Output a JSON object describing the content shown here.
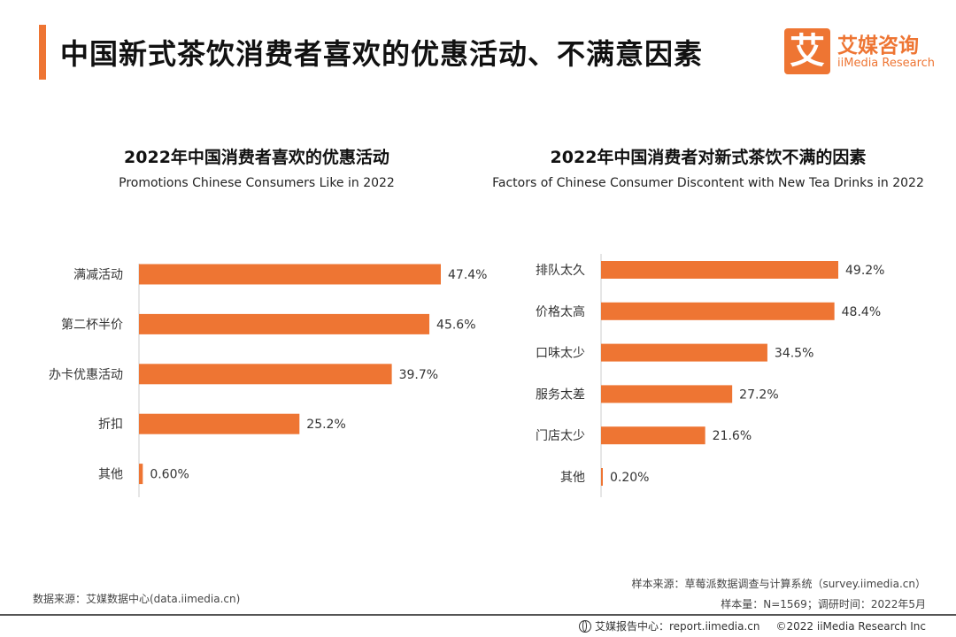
{
  "header": {
    "title": "中国新式茶饮消费者喜欢的优惠活动、不满意因素",
    "logo_mark": "艾",
    "logo_cn": "艾媒咨询",
    "logo_en": "iiMedia Research"
  },
  "colors": {
    "accent": "#ee7533",
    "axis": "#cccccc"
  },
  "chart_data": [
    {
      "type": "bar",
      "orientation": "horizontal",
      "title": "2022年中国消费者喜欢的优惠活动",
      "subtitle": "Promotions Chinese Consumers Like in 2022",
      "categories": [
        "满减活动",
        "第二杯半价",
        "办卡优惠活动",
        "折扣",
        "其他"
      ],
      "values": [
        47.4,
        45.6,
        39.7,
        25.2,
        0.6
      ],
      "value_labels": [
        "47.4%",
        "45.6%",
        "39.7%",
        "25.2%",
        "0.60%"
      ],
      "unit": "%",
      "xlim": [
        0,
        47.4
      ],
      "color": "#ee7533"
    },
    {
      "type": "bar",
      "orientation": "horizontal",
      "title": "2022年中国消费者对新式茶饮不满的因素",
      "subtitle": "Factors of Chinese Consumer Discontent with New Tea Drinks in 2022",
      "categories": [
        "排队太久",
        "价格太高",
        "口味太少",
        "服务太差",
        "门店太少",
        "其他"
      ],
      "values": [
        49.2,
        48.4,
        34.5,
        27.2,
        21.6,
        0.2
      ],
      "value_labels": [
        "49.2%",
        "48.4%",
        "34.5%",
        "27.2%",
        "21.6%",
        "0.20%"
      ],
      "unit": "%",
      "xlim": [
        0,
        49.2
      ],
      "color": "#ee7533"
    }
  ],
  "footer": {
    "data_source": "数据来源：艾媒数据中心(data.iimedia.cn)",
    "sample_source": "样本来源：草莓派数据调查与计算系统（survey.iimedia.cn）",
    "sample_info": "样本量：N=1569；调研时间：2022年5月",
    "report_center": "艾媒报告中心：report.iimedia.cn",
    "copyright": "©2022  iiMedia Research  Inc"
  }
}
